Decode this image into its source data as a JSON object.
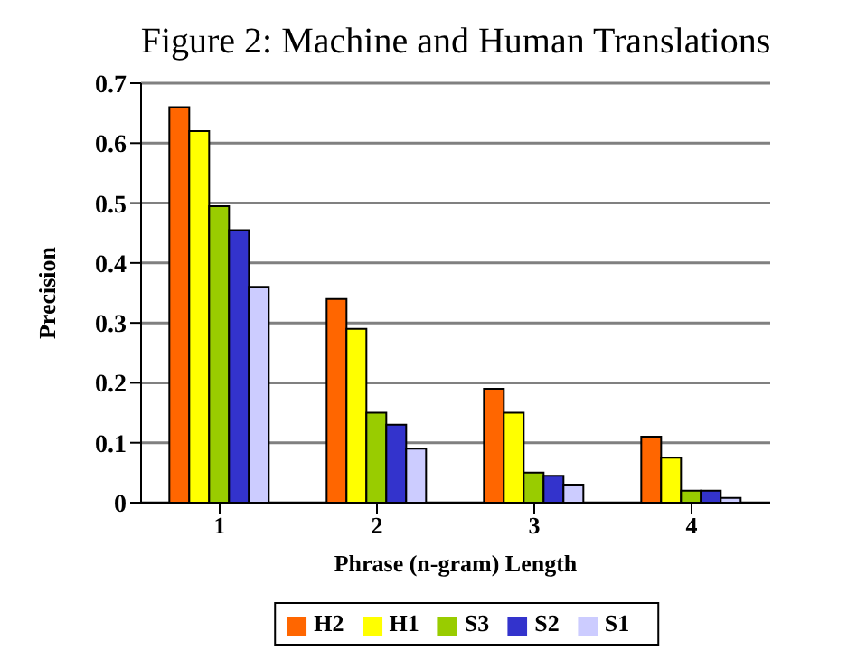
{
  "chart_data": {
    "type": "bar",
    "title": "Figure 2: Machine and Human Translations",
    "xlabel": "Phrase (n-gram) Length",
    "ylabel": "Precision",
    "categories": [
      "1",
      "2",
      "3",
      "4"
    ],
    "series": [
      {
        "name": "H2",
        "color": "#ff6600",
        "values": [
          0.66,
          0.34,
          0.19,
          0.11
        ]
      },
      {
        "name": "H1",
        "color": "#ffff00",
        "values": [
          0.62,
          0.29,
          0.15,
          0.075
        ]
      },
      {
        "name": "S3",
        "color": "#99cc00",
        "values": [
          0.495,
          0.15,
          0.05,
          0.02
        ]
      },
      {
        "name": "S2",
        "color": "#3333cc",
        "values": [
          0.455,
          0.13,
          0.045,
          0.02
        ]
      },
      {
        "name": "S1",
        "color": "#ccccff",
        "values": [
          0.36,
          0.09,
          0.03,
          0.008
        ]
      }
    ],
    "ylim": [
      0,
      0.7
    ],
    "yticks": [
      0,
      0.1,
      0.2,
      0.3,
      0.4,
      0.5,
      0.6,
      0.7
    ],
    "grid": "y",
    "legend": "bottom"
  }
}
